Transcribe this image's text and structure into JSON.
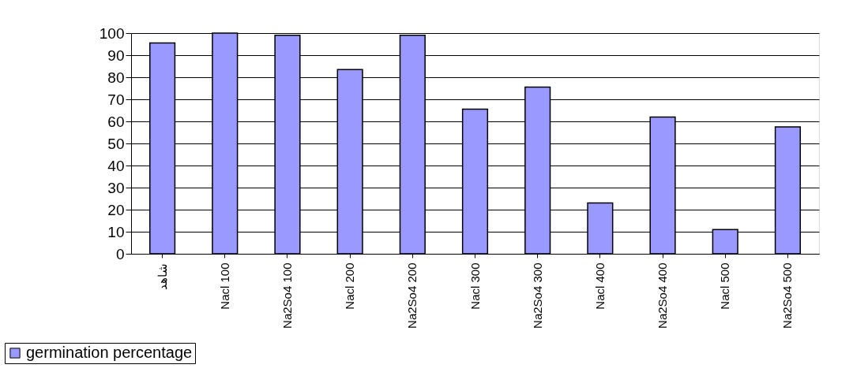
{
  "chart_data": {
    "type": "bar",
    "categories": [
      "شاهد",
      "Nacl 100",
      "Na2So4 100",
      "Nacl 200",
      "Na2So4 200",
      "Nacl 300",
      "Na2So4 300",
      "Nacl 400",
      "Na2So4 400",
      "Nacl 500",
      "Na2So4 500"
    ],
    "series": [
      {
        "name": "germination percentage",
        "color": "#9999ff",
        "values": [
          95.5,
          100,
          99,
          83.5,
          99,
          65.5,
          75.5,
          23,
          62,
          11,
          57.5
        ]
      }
    ],
    "ylim": [
      0,
      100
    ],
    "yticks": [
      0,
      10,
      20,
      30,
      40,
      50,
      60,
      70,
      80,
      90,
      100
    ],
    "grid": "y",
    "legend": "bottom left"
  }
}
